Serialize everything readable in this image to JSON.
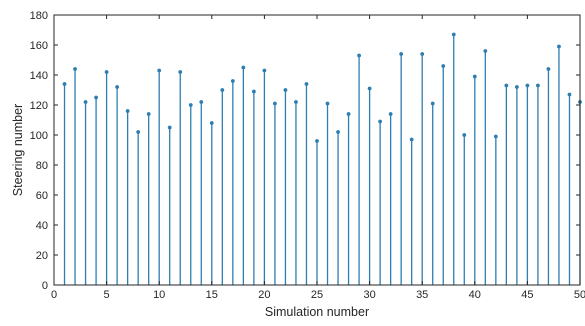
{
  "chart_data": {
    "type": "stem",
    "title": "",
    "xlabel": "Simulation number",
    "ylabel": "Steering number",
    "xlim": [
      0,
      50
    ],
    "ylim": [
      0,
      180
    ],
    "xticks": [
      0,
      5,
      10,
      15,
      20,
      25,
      30,
      35,
      40,
      45,
      50
    ],
    "yticks": [
      0,
      20,
      40,
      60,
      80,
      100,
      120,
      140,
      160,
      180
    ],
    "grid": false,
    "color": "#2e7fb0",
    "x": [
      1,
      2,
      3,
      4,
      5,
      6,
      7,
      8,
      9,
      10,
      11,
      12,
      13,
      14,
      15,
      16,
      17,
      18,
      19,
      20,
      21,
      22,
      23,
      24,
      25,
      26,
      27,
      28,
      29,
      30,
      31,
      32,
      33,
      34,
      35,
      36,
      37,
      38,
      39,
      40,
      41,
      42,
      43,
      44,
      45,
      46,
      47,
      48,
      49,
      50
    ],
    "values": [
      134,
      144,
      122,
      125,
      142,
      132,
      116,
      102,
      114,
      143,
      105,
      142,
      120,
      122,
      108,
      130,
      136,
      145,
      129,
      143,
      121,
      130,
      122,
      134,
      96,
      121,
      102,
      114,
      153,
      131,
      109,
      114,
      154,
      97,
      154,
      121,
      146,
      167,
      100,
      139,
      156,
      99,
      133,
      132,
      133,
      133,
      144,
      159,
      127,
      122
    ]
  }
}
